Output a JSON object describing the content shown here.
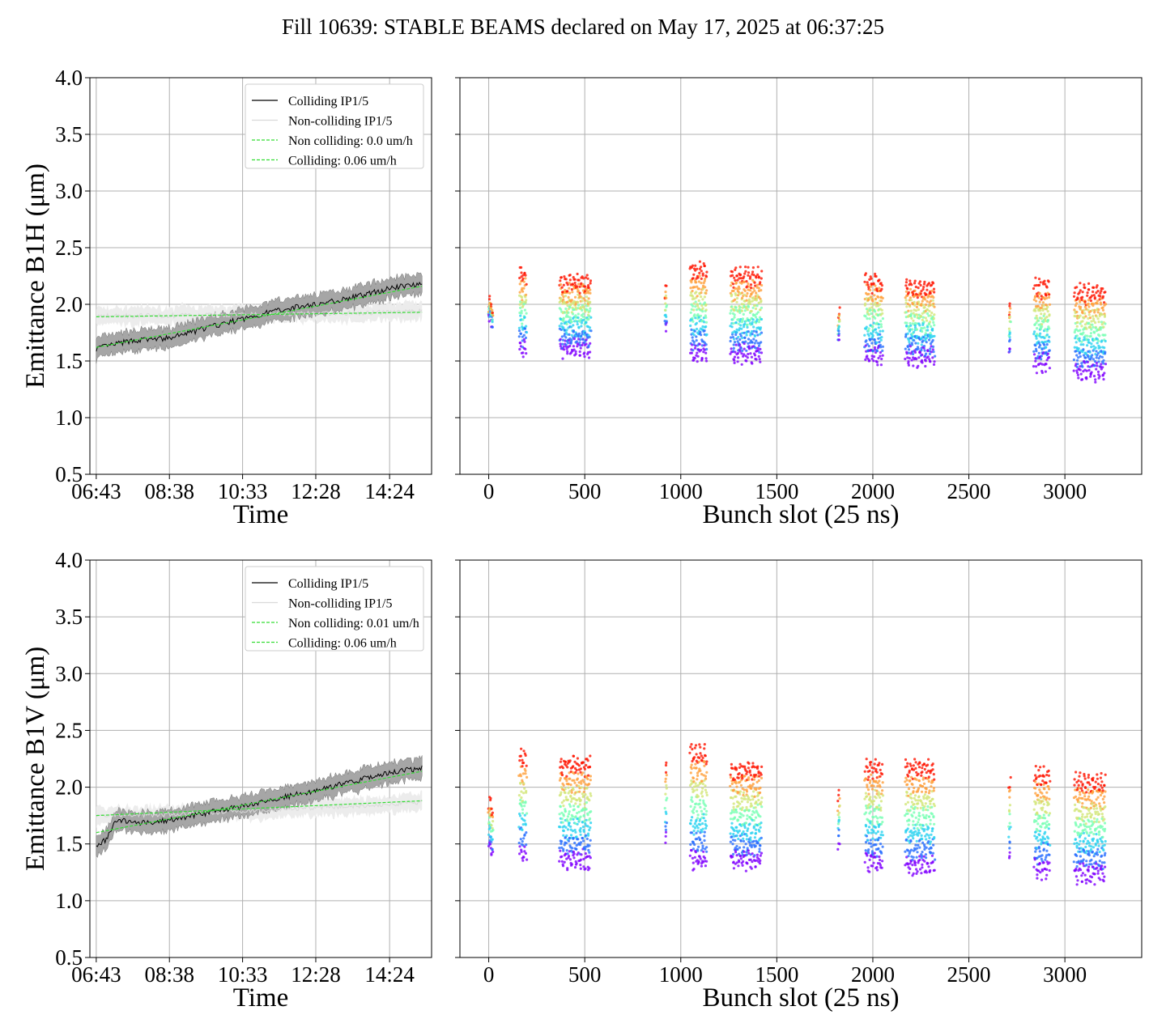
{
  "figure_title": "Fill 10639: STABLE BEAMS declared on May 17, 2025 at 06:37:25",
  "colors": {
    "colliding": "#000000",
    "colliding_band": "#a6a6a6",
    "noncolliding": "#d9d9d9",
    "noncolliding_band": "#ececec",
    "fit": "#33dd33",
    "grid": "#b0b0b0"
  },
  "chart_data": [
    {
      "type": "line",
      "panel": "B1H time evolution",
      "xlabel": "Time",
      "ylabel": "Emittance B1H (μm)",
      "ylim": [
        0.5,
        4.0
      ],
      "yticks": [
        "0.5",
        "1.0",
        "1.5",
        "2.0",
        "2.5",
        "3.0",
        "3.5",
        "4.0"
      ],
      "xticks": [
        "06:43",
        "08:38",
        "10:33",
        "12:28",
        "14:24"
      ],
      "grid": true,
      "legend_position": "top-right",
      "legend": [
        "Colliding IP1/5",
        "Non-colliding IP1/5",
        "Non colliding: 0.0 um/h",
        "Colliding: 0.06 um/h"
      ],
      "series": [
        {
          "name": "Colliding IP1/5",
          "x": [
            "06:43",
            "07:40",
            "08:38",
            "09:35",
            "10:33",
            "11:30",
            "12:28",
            "13:26",
            "14:24",
            "15:15"
          ],
          "values": [
            1.61,
            1.68,
            1.7,
            1.79,
            1.87,
            1.95,
            2.0,
            2.06,
            2.14,
            2.19
          ]
        },
        {
          "name": "Non-colliding IP1/5",
          "x": [
            "06:43",
            "08:38",
            "10:33",
            "12:28",
            "14:24",
            "15:15"
          ],
          "values": [
            1.9,
            1.9,
            1.91,
            1.92,
            1.93,
            1.94
          ]
        },
        {
          "name": "Non colliding: 0.0 um/h",
          "x": [
            "06:43",
            "15:15"
          ],
          "values": [
            1.89,
            1.93
          ]
        },
        {
          "name": "Colliding: 0.06 um/h",
          "x": [
            "06:43",
            "15:15"
          ],
          "values": [
            1.62,
            2.16
          ]
        }
      ]
    },
    {
      "type": "scatter",
      "panel": "B1H bunch-by-bunch",
      "xlabel": "Bunch slot (25 ns)",
      "xlim": [
        -150,
        3400
      ],
      "ylim": [
        0.5,
        4.0
      ],
      "xticks": [
        "0",
        "500",
        "1000",
        "1500",
        "2000",
        "2500",
        "3000"
      ],
      "grid": true,
      "trains": [
        {
          "x_start": 0,
          "x_end": 20,
          "low": 1.8,
          "high": 2.05
        },
        {
          "x_start": 160,
          "x_end": 195,
          "low": 1.55,
          "high": 2.3
        },
        {
          "x_start": 370,
          "x_end": 530,
          "low": 1.55,
          "high": 2.25
        },
        {
          "x_start": 920,
          "x_end": 925,
          "low": 1.7,
          "high": 2.15
        },
        {
          "x_start": 1050,
          "x_end": 1135,
          "low": 1.5,
          "high": 2.35
        },
        {
          "x_start": 1260,
          "x_end": 1420,
          "low": 1.5,
          "high": 2.3
        },
        {
          "x_start": 1820,
          "x_end": 1825,
          "low": 1.6,
          "high": 1.95
        },
        {
          "x_start": 1960,
          "x_end": 2050,
          "low": 1.48,
          "high": 2.25
        },
        {
          "x_start": 2170,
          "x_end": 2320,
          "low": 1.48,
          "high": 2.2
        },
        {
          "x_start": 2710,
          "x_end": 2715,
          "low": 1.5,
          "high": 2.0
        },
        {
          "x_start": 2840,
          "x_end": 2920,
          "low": 1.42,
          "high": 2.2
        },
        {
          "x_start": 3050,
          "x_end": 3210,
          "low": 1.35,
          "high": 2.15
        }
      ]
    },
    {
      "type": "line",
      "panel": "B1V time evolution",
      "xlabel": "Time",
      "ylabel": "Emittance B1V (μm)",
      "ylim": [
        0.5,
        4.0
      ],
      "yticks": [
        "0.5",
        "1.0",
        "1.5",
        "2.0",
        "2.5",
        "3.0",
        "3.5",
        "4.0"
      ],
      "xticks": [
        "06:43",
        "08:38",
        "10:33",
        "12:28",
        "14:24"
      ],
      "grid": true,
      "legend_position": "top-right",
      "legend": [
        "Colliding IP1/5",
        "Non-colliding IP1/5",
        "Non colliding: 0.01 um/h",
        "Colliding: 0.06 um/h"
      ],
      "series": [
        {
          "name": "Colliding IP1/5",
          "x": [
            "06:43",
            "07:00",
            "07:15",
            "07:40",
            "08:38",
            "09:35",
            "10:33",
            "11:30",
            "12:28",
            "13:26",
            "14:24",
            "15:15"
          ],
          "values": [
            1.46,
            1.55,
            1.72,
            1.68,
            1.71,
            1.77,
            1.83,
            1.9,
            1.97,
            2.05,
            2.13,
            2.17
          ]
        },
        {
          "name": "Non-colliding IP1/5",
          "x": [
            "06:43",
            "08:38",
            "10:33",
            "12:28",
            "14:24",
            "15:15"
          ],
          "values": [
            1.75,
            1.76,
            1.79,
            1.82,
            1.85,
            1.87
          ]
        },
        {
          "name": "Non colliding: 0.01 um/h",
          "x": [
            "06:43",
            "15:15"
          ],
          "values": [
            1.75,
            1.88
          ]
        },
        {
          "name": "Colliding: 0.06 um/h",
          "x": [
            "06:43",
            "15:15"
          ],
          "values": [
            1.6,
            2.14
          ]
        }
      ]
    },
    {
      "type": "scatter",
      "panel": "B1V bunch-by-bunch",
      "xlabel": "Bunch slot (25 ns)",
      "xlim": [
        -150,
        3400
      ],
      "ylim": [
        0.5,
        4.0
      ],
      "xticks": [
        "0",
        "500",
        "1000",
        "1500",
        "2000",
        "2500",
        "3000"
      ],
      "grid": true,
      "trains": [
        {
          "x_start": 0,
          "x_end": 20,
          "low": 1.4,
          "high": 1.9
        },
        {
          "x_start": 160,
          "x_end": 195,
          "low": 1.35,
          "high": 2.3
        },
        {
          "x_start": 370,
          "x_end": 530,
          "low": 1.3,
          "high": 2.25
        },
        {
          "x_start": 920,
          "x_end": 925,
          "low": 1.45,
          "high": 2.2
        },
        {
          "x_start": 1050,
          "x_end": 1135,
          "low": 1.3,
          "high": 2.35
        },
        {
          "x_start": 1260,
          "x_end": 1420,
          "low": 1.3,
          "high": 2.2
        },
        {
          "x_start": 1820,
          "x_end": 1825,
          "low": 1.42,
          "high": 1.95
        },
        {
          "x_start": 1960,
          "x_end": 2050,
          "low": 1.28,
          "high": 2.22
        },
        {
          "x_start": 2170,
          "x_end": 2320,
          "low": 1.25,
          "high": 2.22
        },
        {
          "x_start": 2710,
          "x_end": 2715,
          "low": 1.3,
          "high": 2.05
        },
        {
          "x_start": 2840,
          "x_end": 2920,
          "low": 1.22,
          "high": 2.15
        },
        {
          "x_start": 3050,
          "x_end": 3210,
          "low": 1.18,
          "high": 2.1
        }
      ]
    }
  ]
}
